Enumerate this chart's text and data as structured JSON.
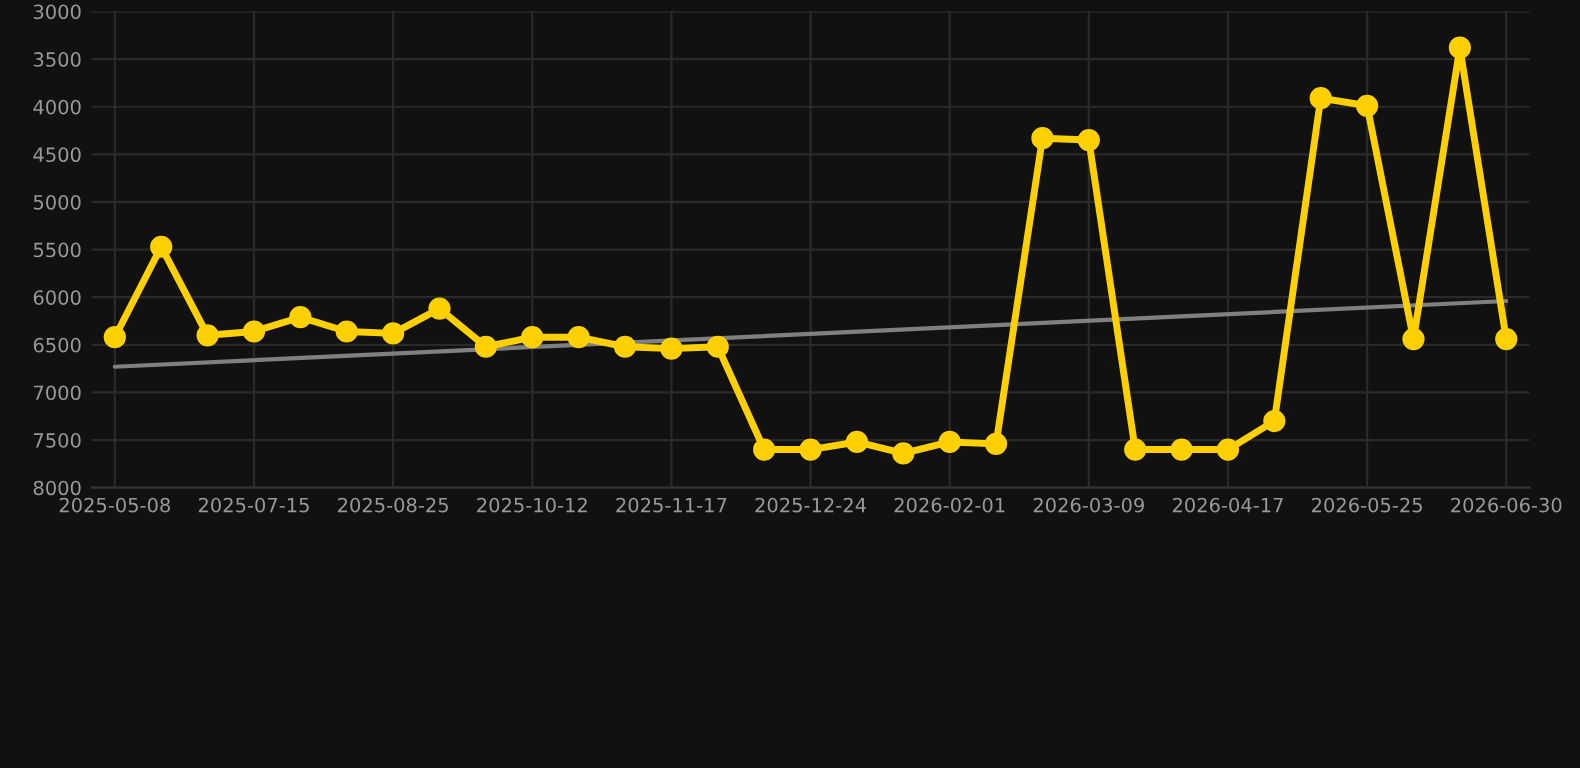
{
  "chart_data": {
    "type": "line",
    "categories": [
      "2025-05-08",
      null,
      null,
      "2025-07-15",
      null,
      null,
      "2025-08-25",
      null,
      null,
      "2025-10-12",
      null,
      null,
      "2025-11-17",
      null,
      null,
      "2025-12-24",
      null,
      null,
      "2026-02-01",
      null,
      null,
      "2026-03-09",
      null,
      null,
      "2026-04-17",
      null,
      null,
      "2026-05-25",
      null,
      null,
      "2026-06-30"
    ],
    "series": [
      {
        "color": "#ffd000",
        "marker": "circle",
        "values": [
          6420,
          5470,
          6400,
          6360,
          6210,
          6360,
          6380,
          6120,
          6520,
          6420,
          6420,
          6520,
          6540,
          6520,
          7600,
          7600,
          7520,
          7640,
          7520,
          7540,
          4330,
          4350,
          7600,
          7600,
          7600,
          7300,
          3910,
          3990,
          6440,
          3380,
          6440
        ]
      },
      {
        "color": "#808080",
        "marker": "none",
        "values": [
          6730,
          null,
          null,
          null,
          null,
          null,
          null,
          null,
          null,
          null,
          null,
          null,
          null,
          null,
          null,
          null,
          null,
          null,
          null,
          null,
          null,
          null,
          null,
          null,
          null,
          null,
          null,
          null,
          null,
          null,
          6040
        ]
      }
    ],
    "ylim": [
      8000,
      3000
    ],
    "yticks": [
      3000,
      3500,
      4000,
      4500,
      5000,
      5500,
      6000,
      6500,
      7000,
      7500,
      8000
    ],
    "grid": true,
    "line_style": "solid"
  }
}
